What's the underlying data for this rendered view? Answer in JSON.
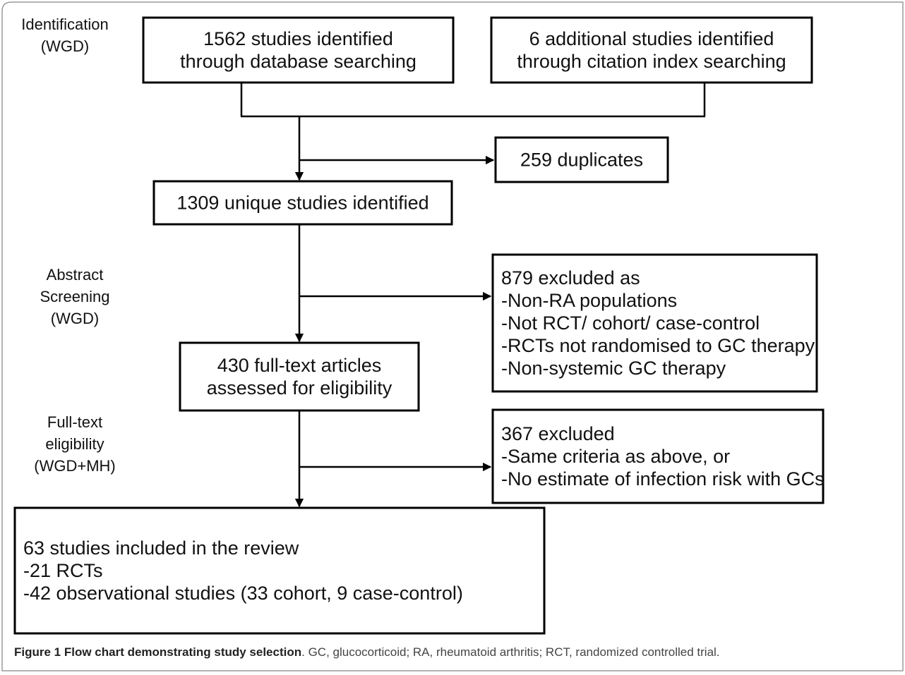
{
  "stages": [
    {
      "lines": [
        "Identification",
        "(WGD)"
      ]
    },
    {
      "lines": [
        "Abstract",
        "Screening",
        "(WGD)"
      ]
    },
    {
      "lines": [
        "Full-text",
        "eligibility",
        "(WGD+MH)"
      ]
    }
  ],
  "nodes": [
    {
      "lines": [
        "1562 studies identified",
        "through database searching"
      ]
    },
    {
      "lines": [
        "6 additional studies identified",
        "through citation index searching"
      ]
    },
    {
      "lines": [
        "259 duplicates"
      ]
    },
    {
      "lines": [
        "1309 unique studies identified"
      ]
    },
    {
      "lines": [
        "879 excluded as",
        "-Non-RA populations",
        "-Not RCT/ cohort/ case-control",
        "-RCTs not randomised to GC therapy",
        "-Non-systemic GC therapy"
      ]
    },
    {
      "lines": [
        "430 full-text articles",
        "assessed for eligibility"
      ]
    },
    {
      "lines": [
        "367 excluded",
        "-Same criteria as above, or",
        "-No estimate of infection risk with GCs"
      ]
    },
    {
      "lines": [
        "63 studies included in the review",
        "-21 RCTs",
        "-42 observational studies (33 cohort, 9 case-control)"
      ]
    }
  ],
  "caption": {
    "title": "Figure 1 Flow chart demonstrating study selection",
    "text": ". GC, glucocorticoid; RA, rheumatoid arthritis; RCT, randomized controlled trial."
  }
}
